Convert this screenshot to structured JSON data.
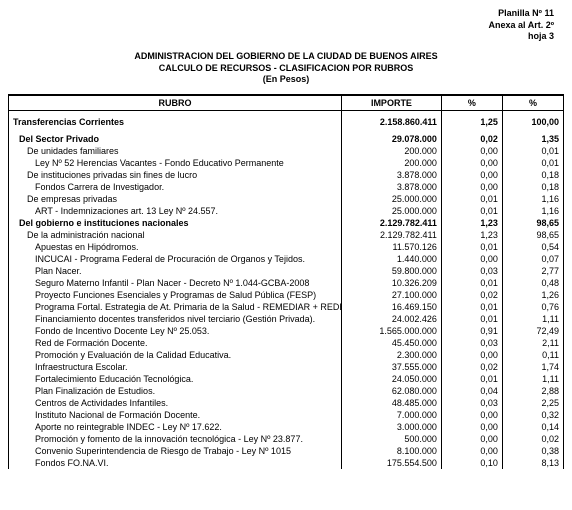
{
  "header": {
    "line1": "Planilla Nº 11",
    "line2": "Anexa al Art. 2º",
    "line3": "hoja 3"
  },
  "title": {
    "line1": "ADMINISTRACION DEL GOBIERNO DE LA CIUDAD DE BUENOS AIRES",
    "line2": "CALCULO DE RECURSOS  -  CLASIFICACION POR RUBROS",
    "line3": "(En Pesos)"
  },
  "columns": {
    "rubro": "RUBRO",
    "importe": "IMPORTE",
    "pct1": "%",
    "pct2": "%"
  },
  "rows": [
    {
      "label": "Transferencias Corrientes",
      "importe": "2.158.860.411",
      "p1": "1,25",
      "p2": "100,00",
      "bold": true,
      "indent": 0,
      "section": true
    },
    {
      "label": "Del Sector Privado",
      "importe": "29.078.000",
      "p1": "0,02",
      "p2": "1,35",
      "bold": true,
      "indent": 1
    },
    {
      "label": "De unidades familiares",
      "importe": "200.000",
      "p1": "0,00",
      "p2": "0,01",
      "bold": false,
      "indent": 2
    },
    {
      "label": "Ley Nº 52 Herencias Vacantes - Fondo Educativo Permanente",
      "importe": "200.000",
      "p1": "0,00",
      "p2": "0,01",
      "bold": false,
      "indent": 3
    },
    {
      "label": "De instituciones privadas sin fines de lucro",
      "importe": "3.878.000",
      "p1": "0,00",
      "p2": "0,18",
      "bold": false,
      "indent": 2
    },
    {
      "label": "Fondos Carrera de Investigador.",
      "importe": "3.878.000",
      "p1": "0,00",
      "p2": "0,18",
      "bold": false,
      "indent": 3
    },
    {
      "label": "De empresas privadas",
      "importe": "25.000.000",
      "p1": "0,01",
      "p2": "1,16",
      "bold": false,
      "indent": 2
    },
    {
      "label": "ART - Indemnizaciones art. 13 Ley Nº 24.557.",
      "importe": "25.000.000",
      "p1": "0,01",
      "p2": "1,16",
      "bold": false,
      "indent": 3
    },
    {
      "label": "Del gobierno e instituciones nacionales",
      "importe": "2.129.782.411",
      "p1": "1,23",
      "p2": "98,65",
      "bold": true,
      "indent": 1
    },
    {
      "label": "De la administración nacional",
      "importe": "2.129.782.411",
      "p1": "1,23",
      "p2": "98,65",
      "bold": false,
      "indent": 2
    },
    {
      "label": "Apuestas en Hipódromos.",
      "importe": "11.570.126",
      "p1": "0,01",
      "p2": "0,54",
      "bold": false,
      "indent": 3
    },
    {
      "label": "INCUCAI - Programa Federal de Procuración de Organos y Tejidos.",
      "importe": "1.440.000",
      "p1": "0,00",
      "p2": "0,07",
      "bold": false,
      "indent": 3
    },
    {
      "label": "Plan Nacer.",
      "importe": "59.800.000",
      "p1": "0,03",
      "p2": "2,77",
      "bold": false,
      "indent": 3
    },
    {
      "label": "Seguro Materno Infantil - Plan Nacer - Decreto Nº 1.044-GCBA-2008",
      "importe": "10.326.209",
      "p1": "0,01",
      "p2": "0,48",
      "bold": false,
      "indent": 3
    },
    {
      "label": "Proyecto Funciones Esenciales y Programas de Salud Pública (FESP)",
      "importe": "27.100.000",
      "p1": "0,02",
      "p2": "1,26",
      "bold": false,
      "indent": 3
    },
    {
      "label": "Programa Fortal. Estrategia de At. Primaria de la Salud - REMEDIAR + REDES (FE",
      "importe": "16.469.150",
      "p1": "0,01",
      "p2": "0,76",
      "bold": false,
      "indent": 3
    },
    {
      "label": "Financiamiento docentes transferidos nivel terciario (Gestión Privada).",
      "importe": "24.002.426",
      "p1": "0,01",
      "p2": "1,11",
      "bold": false,
      "indent": 3
    },
    {
      "label": "Fondo de Incentivo Docente Ley Nº 25.053.",
      "importe": "1.565.000.000",
      "p1": "0,91",
      "p2": "72,49",
      "bold": false,
      "indent": 3
    },
    {
      "label": "Red de Formación Docente.",
      "importe": "45.450.000",
      "p1": "0,03",
      "p2": "2,11",
      "bold": false,
      "indent": 3
    },
    {
      "label": "Promoción y Evaluación de la Calidad Educativa.",
      "importe": "2.300.000",
      "p1": "0,00",
      "p2": "0,11",
      "bold": false,
      "indent": 3
    },
    {
      "label": "Infraestructura Escolar.",
      "importe": "37.555.000",
      "p1": "0,02",
      "p2": "1,74",
      "bold": false,
      "indent": 3
    },
    {
      "label": "Fortalecimiento Educación Tecnológica.",
      "importe": "24.050.000",
      "p1": "0,01",
      "p2": "1,11",
      "bold": false,
      "indent": 3
    },
    {
      "label": "Plan Finalización de Estudios.",
      "importe": "62.080.000",
      "p1": "0,04",
      "p2": "2,88",
      "bold": false,
      "indent": 3
    },
    {
      "label": "Centros de Actividades Infantiles.",
      "importe": "48.485.000",
      "p1": "0,03",
      "p2": "2,25",
      "bold": false,
      "indent": 3
    },
    {
      "label": "Instituto Nacional de Formación Docente.",
      "importe": "7.000.000",
      "p1": "0,00",
      "p2": "0,32",
      "bold": false,
      "indent": 3
    },
    {
      "label": "Aporte no reintegrable INDEC - Ley Nº 17.622.",
      "importe": "3.000.000",
      "p1": "0,00",
      "p2": "0,14",
      "bold": false,
      "indent": 3
    },
    {
      "label": "Promoción y fomento de la innovación tecnológica - Ley Nº 23.877.",
      "importe": "500.000",
      "p1": "0,00",
      "p2": "0,02",
      "bold": false,
      "indent": 3
    },
    {
      "label": "Convenio Superintendencia de Riesgo de Trabajo - Ley Nº 1015",
      "importe": "8.100.000",
      "p1": "0,00",
      "p2": "0,38",
      "bold": false,
      "indent": 3
    },
    {
      "label": "Fondos FO.NA.VI.",
      "importe": "175.554.500",
      "p1": "0,10",
      "p2": "8,13",
      "bold": false,
      "indent": 3
    }
  ]
}
